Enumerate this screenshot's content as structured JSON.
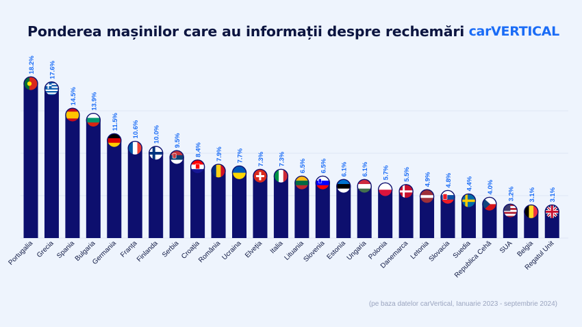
{
  "header": {
    "title": "Ponderea mașinilor care au informații despre rechemări",
    "logo": "carVERTICAL"
  },
  "footnote": "(pe baza datelor carVertical, Ianuarie 2023 - septembrie 2024)",
  "colors": {
    "bar": "#0d0f6e",
    "label": "#1a6cf6",
    "grid": "#dde6f5",
    "text": "#0c1540"
  },
  "chart_data": {
    "type": "bar",
    "title": "Ponderea mașinilor care au informații despre rechemări",
    "categories": [
      "Portugalia",
      "Grecia",
      "Spania",
      "Bulgaria",
      "Germania",
      "Franța",
      "Finlanda",
      "Serbia",
      "Croația",
      "România",
      "Ucraina",
      "Elveția",
      "Italia",
      "Lituania",
      "Slovenia",
      "Estonia",
      "Ungaria",
      "Polonia",
      "Danemarca",
      "Letonia",
      "Slovacia",
      "Suedia",
      "Republica Cehă",
      "SUA",
      "Belgia",
      "Regatul Unit"
    ],
    "values": [
      18.2,
      17.6,
      14.5,
      13.9,
      11.5,
      10.6,
      10.0,
      9.5,
      8.4,
      7.9,
      7.7,
      7.3,
      7.3,
      6.5,
      6.5,
      6.1,
      6.1,
      5.7,
      5.5,
      4.9,
      4.8,
      4.4,
      4.0,
      3.2,
      3.1,
      3.1
    ],
    "value_labels": [
      "18.2%",
      "17.6%",
      "14.5%",
      "13.9%",
      "11.5%",
      "10.6%",
      "10.0%",
      "9.5%",
      "8.4%",
      "7.9%",
      "7.7%",
      "7.3%",
      "7.3%",
      "6.5%",
      "6.5%",
      "6.1%",
      "6.1%",
      "5.7%",
      "5.5%",
      "4.9%",
      "4.8%",
      "4.4%",
      "4.0%",
      "3.2%",
      "3.1%",
      "3.1%"
    ],
    "flags": [
      "portugal-flag-icon",
      "greece-flag-icon",
      "spain-flag-icon",
      "bulgaria-flag-icon",
      "germany-flag-icon",
      "france-flag-icon",
      "finland-flag-icon",
      "serbia-flag-icon",
      "croatia-flag-icon",
      "romania-flag-icon",
      "ukraine-flag-icon",
      "switzerland-flag-icon",
      "italy-flag-icon",
      "lithuania-flag-icon",
      "slovenia-flag-icon",
      "estonia-flag-icon",
      "hungary-flag-icon",
      "poland-flag-icon",
      "denmark-flag-icon",
      "latvia-flag-icon",
      "slovakia-flag-icon",
      "sweden-flag-icon",
      "czechia-flag-icon",
      "usa-flag-icon",
      "belgium-flag-icon",
      "uk-flag-icon"
    ],
    "ylim": [
      0,
      20
    ],
    "grid": true,
    "legend": "none"
  }
}
